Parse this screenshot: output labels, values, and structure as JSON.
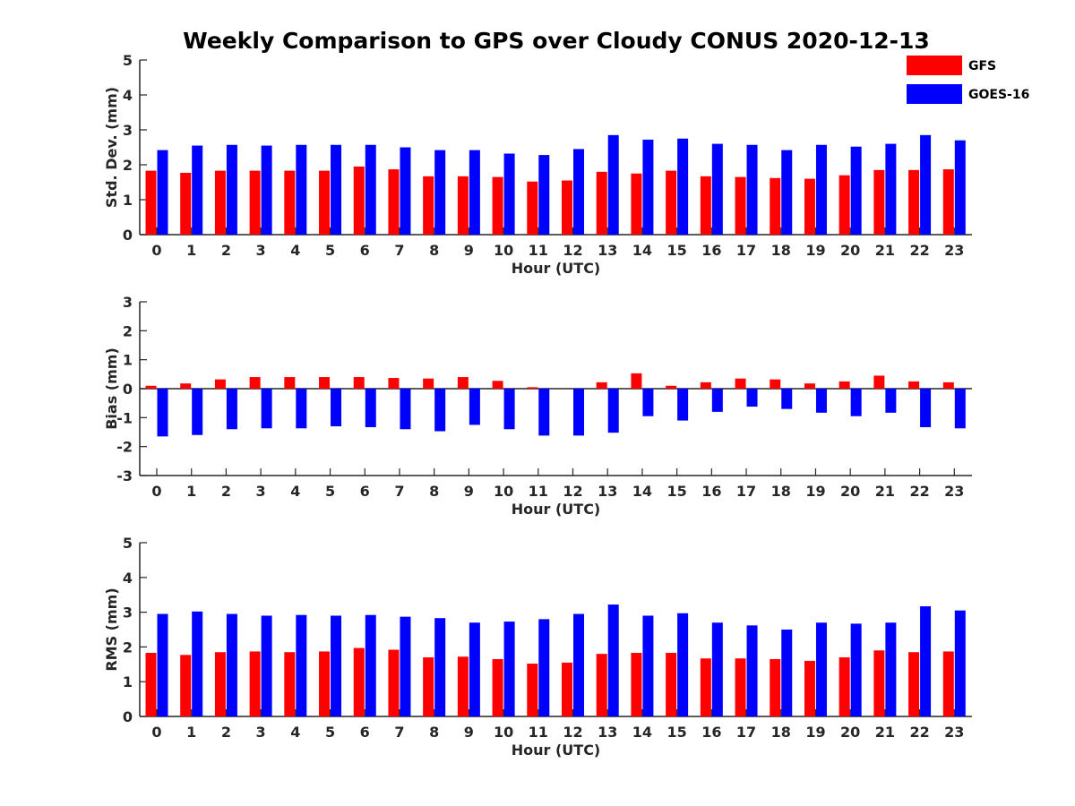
{
  "title": "Weekly Comparison to GPS over Cloudy CONUS 2020-12-13",
  "legend": {
    "placement": "top-right"
  },
  "chart_data": [
    {
      "type": "bar",
      "ylabel": "Std. Dev. (mm)",
      "xlabel": "Hour (UTC)",
      "ylim": [
        0,
        5
      ],
      "yticks": [
        0,
        1,
        2,
        3,
        4,
        5
      ],
      "categories": [
        "0",
        "1",
        "2",
        "3",
        "4",
        "5",
        "6",
        "7",
        "8",
        "9",
        "10",
        "11",
        "12",
        "13",
        "14",
        "15",
        "16",
        "17",
        "18",
        "19",
        "20",
        "21",
        "22",
        "23"
      ],
      "series": [
        {
          "name": "GFS",
          "color": "#ff0000",
          "values": [
            1.83,
            1.77,
            1.83,
            1.83,
            1.83,
            1.83,
            1.95,
            1.87,
            1.67,
            1.67,
            1.65,
            1.52,
            1.55,
            1.8,
            1.75,
            1.83,
            1.67,
            1.65,
            1.62,
            1.6,
            1.7,
            1.85,
            1.85,
            1.87
          ]
        },
        {
          "name": "GOES-16",
          "color": "#0000ff",
          "values": [
            2.42,
            2.55,
            2.57,
            2.55,
            2.57,
            2.57,
            2.57,
            2.5,
            2.42,
            2.42,
            2.32,
            2.28,
            2.45,
            2.85,
            2.72,
            2.75,
            2.6,
            2.57,
            2.42,
            2.57,
            2.52,
            2.6,
            2.85,
            2.7
          ]
        }
      ]
    },
    {
      "type": "bar",
      "ylabel": "Bias (mm)",
      "xlabel": "Hour (UTC)",
      "ylim": [
        -3,
        3
      ],
      "yticks": [
        -3,
        -2,
        -1,
        0,
        1,
        2,
        3
      ],
      "categories": [
        "0",
        "1",
        "2",
        "3",
        "4",
        "5",
        "6",
        "7",
        "8",
        "9",
        "10",
        "11",
        "12",
        "13",
        "14",
        "15",
        "16",
        "17",
        "18",
        "19",
        "20",
        "21",
        "22",
        "23"
      ],
      "series": [
        {
          "name": "GFS",
          "color": "#ff0000",
          "values": [
            0.1,
            0.18,
            0.32,
            0.4,
            0.4,
            0.4,
            0.4,
            0.37,
            0.35,
            0.4,
            0.27,
            0.05,
            0.0,
            0.22,
            0.53,
            0.1,
            0.22,
            0.35,
            0.32,
            0.18,
            0.25,
            0.45,
            0.25,
            0.22
          ]
        },
        {
          "name": "GOES-16",
          "color": "#0000ff",
          "values": [
            -1.65,
            -1.6,
            -1.4,
            -1.37,
            -1.37,
            -1.3,
            -1.33,
            -1.4,
            -1.47,
            -1.25,
            -1.4,
            -1.62,
            -1.62,
            -1.52,
            -0.95,
            -1.1,
            -0.8,
            -0.62,
            -0.7,
            -0.83,
            -0.95,
            -0.83,
            -1.33,
            -1.37
          ]
        }
      ]
    },
    {
      "type": "bar",
      "ylabel": "RMS (mm)",
      "xlabel": "Hour (UTC)",
      "ylim": [
        0,
        5
      ],
      "yticks": [
        0,
        1,
        2,
        3,
        4,
        5
      ],
      "categories": [
        "0",
        "1",
        "2",
        "3",
        "4",
        "5",
        "6",
        "7",
        "8",
        "9",
        "10",
        "11",
        "12",
        "13",
        "14",
        "15",
        "16",
        "17",
        "18",
        "19",
        "20",
        "21",
        "22",
        "23"
      ],
      "series": [
        {
          "name": "GFS",
          "color": "#ff0000",
          "values": [
            1.83,
            1.77,
            1.85,
            1.87,
            1.85,
            1.87,
            1.97,
            1.92,
            1.7,
            1.72,
            1.65,
            1.52,
            1.55,
            1.8,
            1.83,
            1.83,
            1.67,
            1.67,
            1.65,
            1.6,
            1.7,
            1.9,
            1.85,
            1.87
          ]
        },
        {
          "name": "GOES-16",
          "color": "#0000ff",
          "values": [
            2.95,
            3.02,
            2.95,
            2.9,
            2.92,
            2.9,
            2.92,
            2.87,
            2.83,
            2.7,
            2.73,
            2.8,
            2.95,
            3.22,
            2.9,
            2.97,
            2.7,
            2.62,
            2.5,
            2.7,
            2.67,
            2.7,
            3.17,
            3.05
          ]
        }
      ]
    }
  ]
}
